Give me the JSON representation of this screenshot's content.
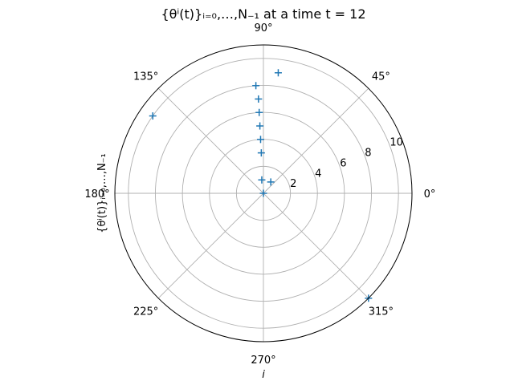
{
  "chart_data": {
    "type": "scatter",
    "projection": "polar",
    "title": "{θⁱ(t)}ᵢ₌₀,…,N₋₁ at a time t = 12",
    "xlabel": "i",
    "ylabel": "{θⁱ(t)}ᵢ₌₀,…,N₋₁",
    "angle_ticks": [
      "0°",
      "45°",
      "90°",
      "135°",
      "180°",
      "225°",
      "270°",
      "315°"
    ],
    "radial_ticks": [
      2,
      4,
      6,
      8,
      10
    ],
    "rlim": [
      0,
      11
    ],
    "grid": true,
    "marker": "+",
    "color": "#1f77b4",
    "series": [
      {
        "points": [
          {
            "theta_deg": 180,
            "r": 0
          },
          {
            "theta_deg": 57,
            "r": 1
          },
          {
            "theta_deg": 97,
            "r": 1
          },
          {
            "theta_deg": 93,
            "r": 3
          },
          {
            "theta_deg": 93,
            "r": 4
          },
          {
            "theta_deg": 93,
            "r": 5
          },
          {
            "theta_deg": 93,
            "r": 6
          },
          {
            "theta_deg": 93,
            "r": 7
          },
          {
            "theta_deg": 94,
            "r": 8
          },
          {
            "theta_deg": 83,
            "r": 9
          },
          {
            "theta_deg": 145,
            "r": 10
          },
          {
            "theta_deg": 315,
            "r": 11
          }
        ]
      }
    ]
  }
}
